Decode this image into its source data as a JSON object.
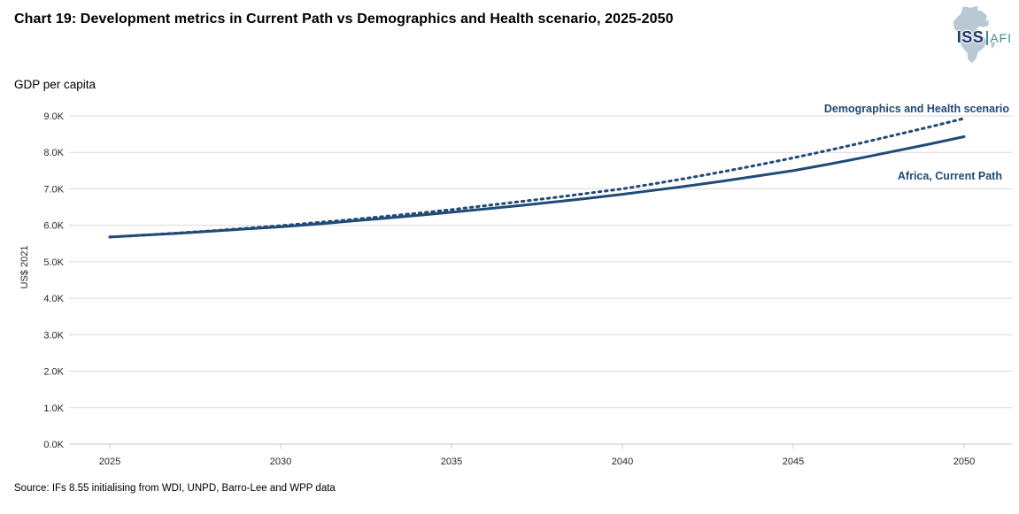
{
  "header": {
    "title": "Chart 19: Development metrics in Current Path vs Demographics and Health scenario, 2025-2050"
  },
  "logo": {
    "iss": "ISS",
    "afi": "AFI"
  },
  "chart": {
    "subtitle": "GDP per capita",
    "ylabel": "US$ 2021"
  },
  "chart_data": {
    "type": "line",
    "title": "GDP per capita",
    "ylabel": "US$ 2021",
    "unit": "thousand US$ 2021",
    "x": [
      2025,
      2026,
      2027,
      2028,
      2029,
      2030,
      2031,
      2032,
      2033,
      2034,
      2035,
      2036,
      2037,
      2038,
      2039,
      2040,
      2041,
      2042,
      2043,
      2044,
      2045,
      2046,
      2047,
      2048,
      2049,
      2050
    ],
    "series": [
      {
        "name": "Africa, Current Path",
        "style": "solid",
        "color": "#204a77",
        "values": [
          5.68,
          5.73,
          5.78,
          5.84,
          5.9,
          5.96,
          6.03,
          6.11,
          6.19,
          6.27,
          6.36,
          6.45,
          6.54,
          6.64,
          6.74,
          6.85,
          6.97,
          7.09,
          7.22,
          7.36,
          7.5,
          7.67,
          7.85,
          8.04,
          8.23,
          8.43
        ]
      },
      {
        "name": "Demographics and Health scenario",
        "style": "dotted",
        "color": "#204a77",
        "values": [
          5.68,
          5.73,
          5.79,
          5.85,
          5.92,
          5.99,
          6.07,
          6.15,
          6.24,
          6.33,
          6.43,
          6.54,
          6.65,
          6.76,
          6.88,
          7.0,
          7.15,
          7.31,
          7.48,
          7.66,
          7.85,
          8.05,
          8.26,
          8.48,
          8.7,
          8.93
        ]
      }
    ],
    "ylim": [
      0,
      9
    ],
    "yticks": {
      "values": [
        0,
        1,
        2,
        3,
        4,
        5,
        6,
        7,
        8,
        9
      ],
      "labels": [
        "0.0K",
        "1.0K",
        "2.0K",
        "3.0K",
        "4.0K",
        "5.0K",
        "6.0K",
        "7.0K",
        "8.0K",
        "9.0K"
      ]
    },
    "xticks": [
      2025,
      2030,
      2035,
      2040,
      2045,
      2050
    ],
    "grid": true,
    "legend_position": "inline-right"
  },
  "footer": {
    "source": "Source: IFs 8.55 initialising from WDI, UNPD, Barro-Lee and WPP data"
  },
  "colors": {
    "accent_navy": "#204a77",
    "grid": "#d9d9d9",
    "axis": "#c9c9c9",
    "logo_navy": "#1f3864",
    "logo_teal": "#35918e",
    "africa_fill": "#b9c9d4"
  }
}
